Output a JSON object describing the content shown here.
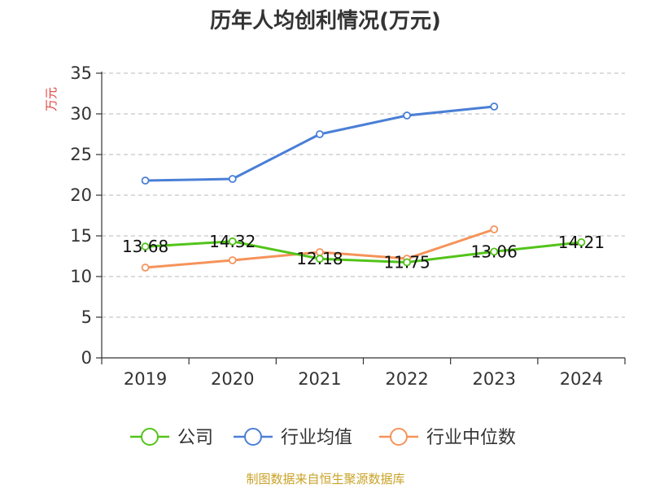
{
  "chart_data": {
    "type": "line",
    "title": "历年人均创利情况(万元)",
    "ylabel": "万元",
    "xlabel": "",
    "categories": [
      "2019",
      "2020",
      "2021",
      "2022",
      "2023",
      "2024"
    ],
    "ylim": [
      0,
      35
    ],
    "yticks": [
      "0",
      "5",
      "10",
      "15",
      "20",
      "25",
      "30",
      "35"
    ],
    "grid": true,
    "legend_position": "bottom",
    "series": [
      {
        "name": "公司",
        "color": "#52c41a",
        "values": [
          13.68,
          14.32,
          12.18,
          11.75,
          13.06,
          14.21
        ],
        "labels": [
          "13.68",
          "14.32",
          "12.18",
          "11.75",
          "13.06",
          "14.21"
        ]
      },
      {
        "name": "行业均值",
        "color": "#4a7fd6",
        "values": [
          21.8,
          22.0,
          27.5,
          29.8,
          30.9,
          null
        ]
      },
      {
        "name": "行业中位数",
        "color": "#f5935a",
        "values": [
          11.1,
          12.0,
          13.0,
          12.2,
          15.8,
          null
        ]
      }
    ],
    "source": "制图数据来自恒生聚源数据库"
  }
}
